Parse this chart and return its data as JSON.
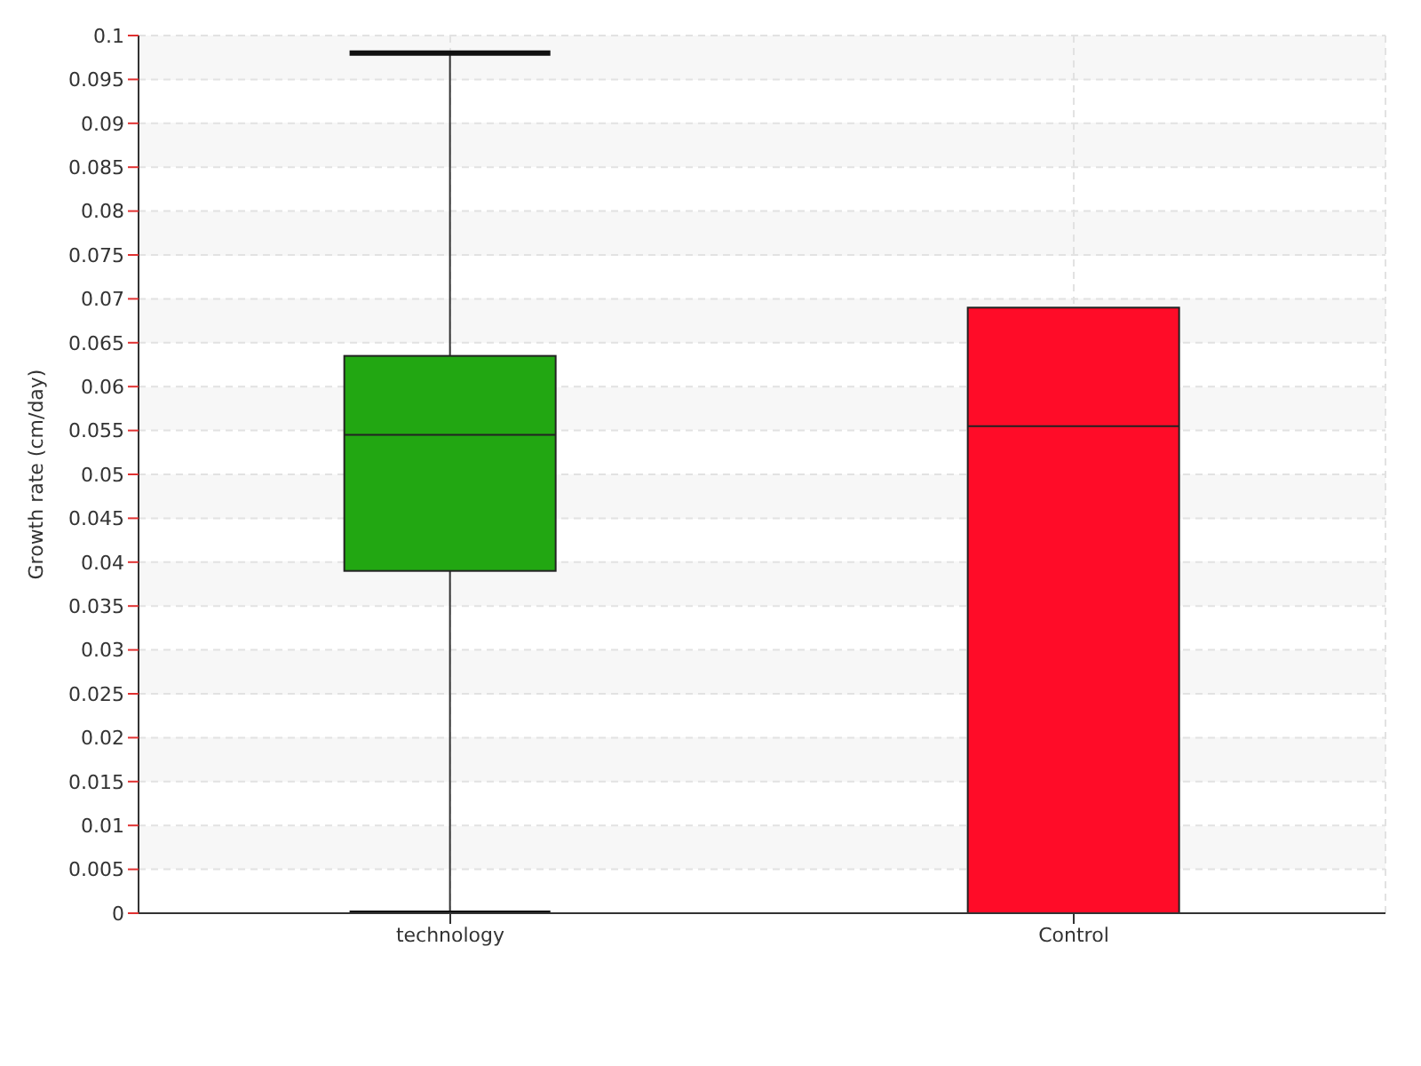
{
  "chart_data": {
    "type": "box",
    "ylabel": "Growth rate (cm/day)",
    "categories": [
      "technology",
      "Control"
    ],
    "boxes": [
      {
        "low": 0,
        "q1": 0.039,
        "median": 0.0545,
        "q3": 0.0635,
        "high": 0.098
      },
      {
        "low": 0,
        "q1": 0,
        "median": 0.0555,
        "q3": 0.069,
        "high": 0.069
      }
    ],
    "colors": [
      "#22a712",
      "#ff0c28"
    ],
    "ylim": [
      0,
      0.1
    ],
    "yticks": [
      0,
      0.005,
      0.01,
      0.015,
      0.02,
      0.025,
      0.03,
      0.035,
      0.04,
      0.045,
      0.05,
      0.055,
      0.06,
      0.065,
      0.07,
      0.075,
      0.08,
      0.085,
      0.09,
      0.095,
      0.1
    ],
    "grid": true
  }
}
